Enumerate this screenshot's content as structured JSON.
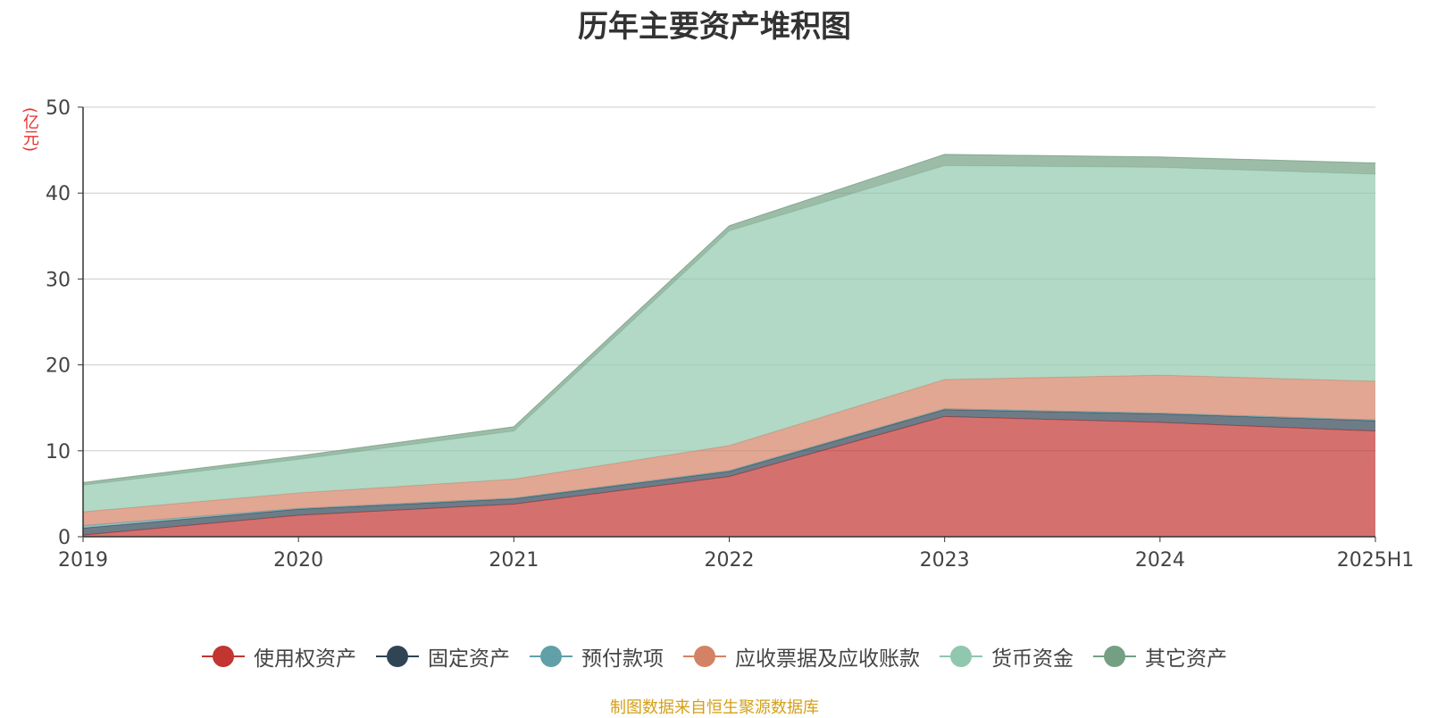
{
  "title": "历年主要资产堆积图",
  "unit_label": "(亿元)",
  "source_note": "制图数据来自恒生聚源数据库",
  "chart_data": {
    "type": "area",
    "stacked": true,
    "categories": [
      "2019",
      "2020",
      "2021",
      "2022",
      "2023",
      "2024",
      "2025H1"
    ],
    "ylim": [
      0,
      50
    ],
    "yticks": [
      0,
      10,
      20,
      30,
      40,
      50
    ],
    "grid": true,
    "legend_position": "bottom",
    "series": [
      {
        "name": "使用权资产",
        "color": "#c23531",
        "values": [
          0.2,
          2.5,
          3.8,
          7.0,
          14.0,
          13.3,
          12.3
        ]
      },
      {
        "name": "固定资产",
        "color": "#2f4554",
        "values": [
          0.8,
          0.7,
          0.6,
          0.6,
          0.8,
          1.0,
          1.2
        ]
      },
      {
        "name": "预付款项",
        "color": "#61a0a8",
        "values": [
          0.3,
          0.1,
          0.1,
          0.1,
          0.1,
          0.1,
          0.1
        ]
      },
      {
        "name": "应收票据及应收账款",
        "color": "#d48265",
        "values": [
          1.6,
          1.8,
          2.2,
          2.9,
          3.4,
          4.4,
          4.5
        ]
      },
      {
        "name": "货币资金",
        "color": "#91c7ae",
        "values": [
          3.1,
          3.9,
          5.6,
          25.0,
          24.9,
          24.2,
          24.1
        ]
      },
      {
        "name": "其它资产",
        "color": "#749f83",
        "values": [
          0.3,
          0.4,
          0.5,
          0.6,
          1.3,
          1.2,
          1.3
        ]
      }
    ]
  }
}
